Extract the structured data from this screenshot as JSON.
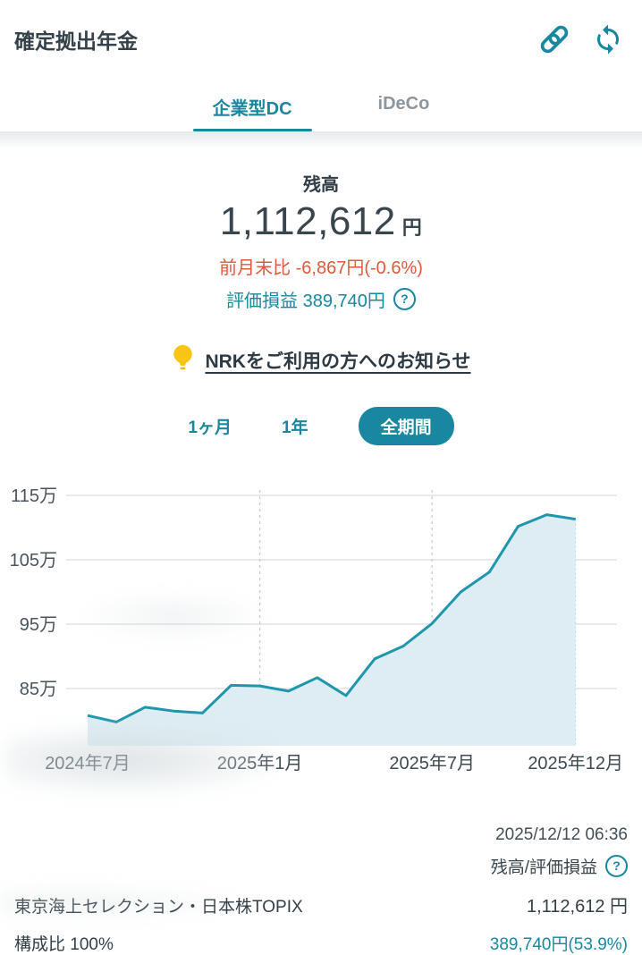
{
  "header": {
    "title": "確定拠出年金"
  },
  "tabs": [
    {
      "label": "企業型DC",
      "active": true
    },
    {
      "label": "iDeCo",
      "active": false
    }
  ],
  "balance": {
    "label": "残高",
    "amount": "1,112,612",
    "unit": "円",
    "mom_change": "前月末比 -6,867円(-0.6%)",
    "gain_text": "評価損益 389,740円"
  },
  "icons": {
    "help_glyph": "?"
  },
  "notice": {
    "text": "NRKをご利用の方へのお知らせ"
  },
  "periods": [
    {
      "label": "1ヶ月",
      "active": false
    },
    {
      "label": "1年",
      "active": false
    },
    {
      "label": "全期間",
      "active": true
    }
  ],
  "chart_data": {
    "type": "area",
    "title": "",
    "unit": "万円",
    "x": [
      "2024-07",
      "2024-08",
      "2024-09",
      "2024-10",
      "2024-11",
      "2024-12",
      "2025-01",
      "2025-02",
      "2025-03",
      "2025-04",
      "2025-05",
      "2025-06",
      "2025-07",
      "2025-08",
      "2025-09",
      "2025-10",
      "2025-11",
      "2025-12"
    ],
    "values": [
      80.8,
      79.8,
      82.1,
      81.5,
      81.2,
      85.5,
      85.4,
      84.6,
      86.7,
      83.9,
      89.6,
      91.6,
      95.1,
      100.0,
      103.1,
      110.2,
      112.0,
      111.3
    ],
    "y_ticks": [
      "115万",
      "105万",
      "95万",
      "85万"
    ],
    "y_tick_values": [
      115,
      105,
      95,
      85
    ],
    "ylim": [
      76,
      116
    ],
    "x_tick_labels": [
      "2024年7月",
      "2025年1月",
      "2025年7月",
      "2025年12月"
    ],
    "x_tick_indices": [
      0,
      6,
      12,
      17
    ],
    "dashed_x_indices": [
      6,
      12
    ],
    "grid": "horizontal solid; vertical dashed at x ticks 2025-01 and 2025-07",
    "legend_position": "none",
    "line_color": "#1f96ac",
    "fill_color": "#ddedf3"
  },
  "footer": {
    "timestamp": "2025/12/12 06:36",
    "legend": "残高/評価損益",
    "fund_name": "東京海上セレクション・日本株TOPIX",
    "fund_value": "1,112,612 円",
    "ratio_label": "構成比 100%",
    "gain_value": "389,740円(53.9%)"
  },
  "colors": {
    "accent_teal": "#1a87a0",
    "negative_red": "#de5a3e",
    "dark_text": "#333f47",
    "inactive_gray": "#8d969d"
  }
}
